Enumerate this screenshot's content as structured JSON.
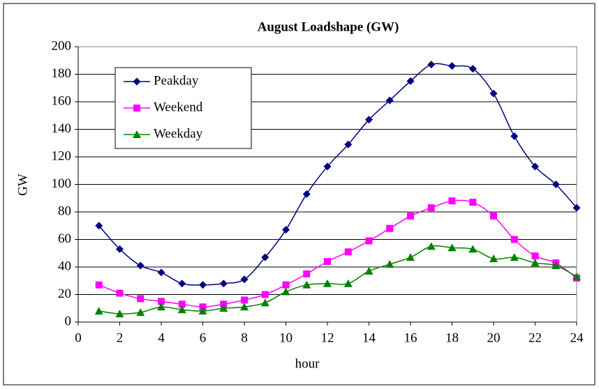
{
  "chart_data": {
    "type": "line",
    "title": "August Loadshape (GW)",
    "xlabel": "hour",
    "ylabel": "GW",
    "x": [
      1,
      2,
      3,
      4,
      5,
      6,
      7,
      8,
      9,
      10,
      11,
      12,
      13,
      14,
      15,
      16,
      17,
      18,
      19,
      20,
      21,
      22,
      23,
      24
    ],
    "series": [
      {
        "name": "Peakday",
        "color": "#000080",
        "marker": "diamond",
        "values": [
          70,
          53,
          41,
          36,
          28,
          27,
          28,
          31,
          47,
          67,
          93,
          113,
          129,
          147,
          161,
          175,
          187,
          186,
          184,
          166,
          135,
          113,
          100,
          83
        ]
      },
      {
        "name": "Weekend",
        "color": "#ff00ff",
        "marker": "square",
        "values": [
          27,
          21,
          17,
          15,
          13,
          11,
          13,
          16,
          20,
          27,
          35,
          44,
          51,
          59,
          68,
          77,
          83,
          88,
          87,
          77,
          60,
          48,
          43,
          32
        ]
      },
      {
        "name": "Weekday",
        "color": "#008000",
        "marker": "triangle",
        "values": [
          8,
          6,
          7,
          11,
          9,
          8,
          10,
          11,
          14,
          22,
          27,
          28,
          28,
          37,
          42,
          47,
          55,
          54,
          53,
          46,
          47,
          43,
          41,
          33
        ]
      }
    ],
    "xlim": [
      0,
      24
    ],
    "xticks": [
      0,
      2,
      4,
      6,
      8,
      10,
      12,
      14,
      16,
      18,
      20,
      22,
      24
    ],
    "ylim": [
      0,
      200
    ],
    "yticks": [
      0,
      20,
      40,
      60,
      80,
      100,
      120,
      140,
      160,
      180,
      200
    ],
    "grid": true,
    "legend": "upper left"
  }
}
